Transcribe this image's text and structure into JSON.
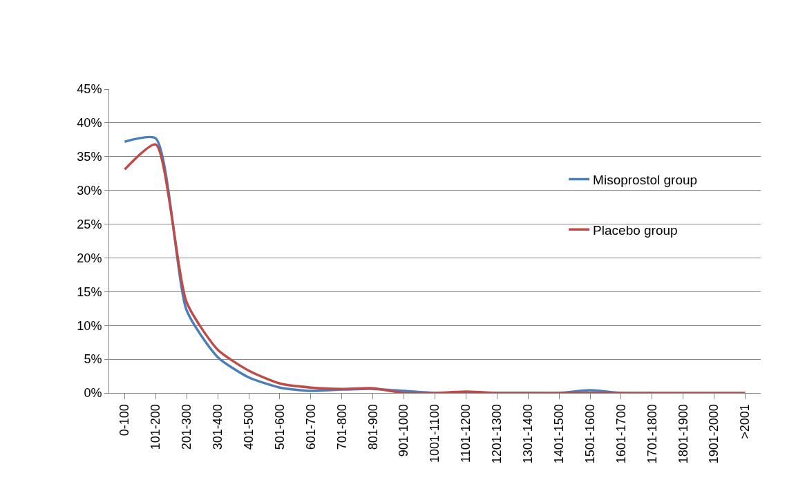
{
  "chart_data": {
    "type": "line",
    "categories": [
      "0-100",
      "101-200",
      "201-300",
      "301-400",
      "401-500",
      "501-600",
      "601-700",
      "701-800",
      "801-900",
      "901-1000",
      "1001-1100",
      "1101-1200",
      "1201-1300",
      "1301-1400",
      "1401-1500",
      "1501-1600",
      "1601-1700",
      "1701-1800",
      "1801-1900",
      "1901-2000",
      ">2001"
    ],
    "series": [
      {
        "name": "Misoprostol group",
        "color": "#4a7ebb",
        "values": [
          37.2,
          37.7,
          12.2,
          5.3,
          2.3,
          0.8,
          0.3,
          0.5,
          0.6,
          0.3,
          0,
          0.1,
          0,
          0,
          0,
          0.4,
          0,
          0,
          null,
          null,
          null
        ]
      },
      {
        "name": "Placebo group",
        "color": "#be4b48",
        "values": [
          33.1,
          36.8,
          13.4,
          6.4,
          3.3,
          1.4,
          0.8,
          0.6,
          0.7,
          0,
          0,
          0.2,
          0,
          0,
          0,
          0,
          0,
          0,
          0,
          0,
          0
        ]
      }
    ],
    "ylim": [
      0,
      45
    ],
    "yticks": [
      {
        "value": 0,
        "label": "0%"
      },
      {
        "value": 5,
        "label": "5%"
      },
      {
        "value": 10,
        "label": "10%"
      },
      {
        "value": 15,
        "label": "15%"
      },
      {
        "value": 20,
        "label": "20%"
      },
      {
        "value": 25,
        "label": "25%"
      },
      {
        "value": 30,
        "label": "30%"
      },
      {
        "value": 35,
        "label": "35%"
      },
      {
        "value": 40,
        "label": "40%"
      },
      {
        "value": 45,
        "label": "45%"
      }
    ],
    "grid": "y",
    "legend": "right",
    "marker": "none",
    "line_style": "solid"
  }
}
